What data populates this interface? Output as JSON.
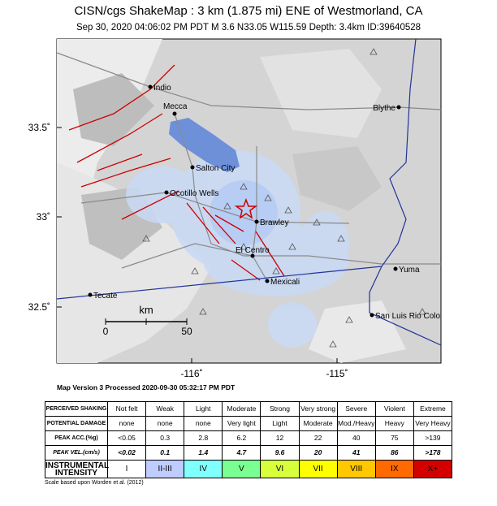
{
  "header": {
    "title": "CISN/cgs ShakeMap : 3 km (1.875 mi) ENE of Westmorland, CA",
    "subtitle": "Sep 30, 2020 04:06:02 PM PDT   M 3.6   N33.05 W115.59   Depth: 3.4km   ID:39640528"
  },
  "map": {
    "lat_labels": [
      "33.5˚",
      "33˚",
      "32.5˚"
    ],
    "lon_labels": [
      "-116˚",
      "-115˚"
    ],
    "cities": [
      "Indio",
      "Mecca",
      "Blythe",
      "Salton City",
      "Ocotillo Wells",
      "Brawley",
      "El Centro",
      "Mexicali",
      "Yuma",
      "Tecate",
      "San Luis Rio Colo"
    ],
    "scale": {
      "unit": "km",
      "start": "0",
      "end": "50"
    }
  },
  "footer": {
    "version": "Map Version 3 Processed 2020-09-30 05:32:17 PM PDT",
    "scale_note": "Scale based upon Worden et al. (2012)"
  },
  "table": {
    "row_headers": [
      "PERCEIVED SHAKING",
      "POTENTIAL DAMAGE",
      "PEAK ACC.(%g)",
      "PEAK VEL.(cm/s)",
      "INSTRUMENTAL INTENSITY"
    ],
    "rows": [
      [
        "Not felt",
        "Weak",
        "Light",
        "Moderate",
        "Strong",
        "Very strong",
        "Severe",
        "Violent",
        "Extreme"
      ],
      [
        "none",
        "none",
        "none",
        "Very light",
        "Light",
        "Moderate",
        "Mod./Heavy",
        "Heavy",
        "Very Heavy"
      ],
      [
        "<0.05",
        "0.3",
        "2.8",
        "6.2",
        "12",
        "22",
        "40",
        "75",
        ">139"
      ],
      [
        "<0.02",
        "0.1",
        "1.4",
        "4.7",
        "9.6",
        "20",
        "41",
        "86",
        ">178"
      ],
      [
        "I",
        "II-III",
        "IV",
        "V",
        "VI",
        "VII",
        "VIII",
        "IX",
        "X+"
      ]
    ],
    "intensity_colors": [
      "#ffffff",
      "#bfccff",
      "#80ffff",
      "#7aff93",
      "#d8ff3c",
      "#ffff00",
      "#ffc800",
      "#ff6a00",
      "#d40000"
    ]
  }
}
